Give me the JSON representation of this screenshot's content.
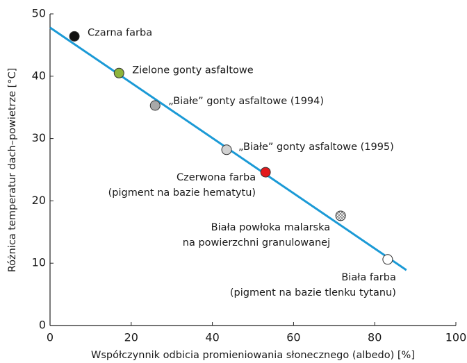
{
  "chart_data": {
    "type": "scatter",
    "xlabel": "Współczynnik odbicia promieniowania słonecznego (albedo) [%]",
    "ylabel": "Różnica temperatur dach–powietrze [°C]",
    "xlim": [
      0,
      100
    ],
    "xticks": [
      0,
      20,
      40,
      60,
      80,
      100
    ],
    "ylim": [
      0,
      50
    ],
    "yticks": [
      0,
      10,
      20,
      30,
      40,
      50
    ],
    "x": [
      6.0,
      17.0,
      25.9,
      43.5,
      53.1,
      71.6,
      83.2
    ],
    "values": [
      46.4,
      40.5,
      35.3,
      28.2,
      24.6,
      17.6,
      10.6
    ],
    "labels": [
      [
        "Czarna farba"
      ],
      [
        "Zielone gonty asfaltowe"
      ],
      [
        "„Białe” gonty asfaltowe (1994)"
      ],
      [
        "„Białe” gonty asfaltowe (1995)"
      ],
      [
        "Czerwona farba",
        "(pigment na bazie hematytu)"
      ],
      [
        "Biała powłoka malarska",
        "na powierzchni granulowanej"
      ],
      [
        "Biała farba",
        "(pigment na bazie tlenku tytanu)"
      ]
    ],
    "colors": [
      "#111111",
      "#8db43c",
      "#a8a8a8",
      "#d2d2d2",
      "#e3191c",
      "#ffffff",
      "#ffffff"
    ],
    "hatched": [
      false,
      false,
      false,
      false,
      false,
      true,
      false
    ],
    "fit_line": {
      "x": [
        0,
        87.8
      ],
      "values": [
        47.8,
        8.9
      ],
      "color": "#1b9ad6"
    }
  }
}
